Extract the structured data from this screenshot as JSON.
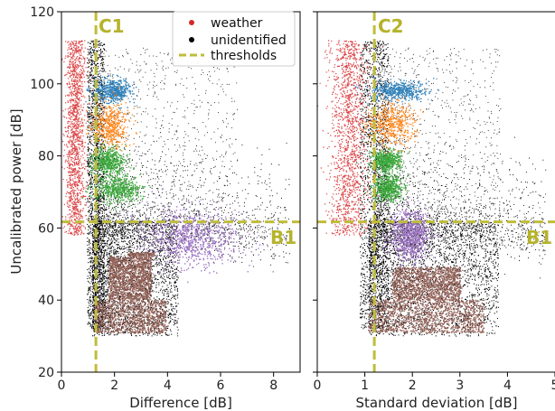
{
  "chart_data": [
    {
      "type": "scatter",
      "panel": "left",
      "xlabel": "Difference [dB]",
      "ylabel": "Uncalibrated power [dB]",
      "xlim": [
        0,
        9
      ],
      "ylim": [
        20,
        120
      ],
      "xticks": [
        0,
        2,
        4,
        6,
        8
      ],
      "yticks": [
        20,
        40,
        60,
        80,
        100,
        120
      ],
      "thresholds": {
        "x": 1.3,
        "y": 61.7,
        "x_label": "C1",
        "y_label": "B1"
      },
      "series": [
        {
          "name": "weather",
          "color": "#d62728",
          "x_range": [
            0.25,
            1.1
          ],
          "y_range": [
            58,
            112
          ]
        },
        {
          "name": "unidentified",
          "color": "#000000",
          "x_range": [
            0.8,
            9.0
          ],
          "y_range": [
            28,
            115
          ]
        }
      ],
      "clusters": [
        {
          "color": "#1f77b4",
          "center": [
            1.9,
            98.0
          ],
          "spread": [
            0.35,
            1.6
          ]
        },
        {
          "color": "#ff7f0e",
          "center": [
            1.85,
            88.5
          ],
          "spread": [
            0.35,
            3.0
          ]
        },
        {
          "color": "#2ca02c",
          "center": [
            1.8,
            78.5
          ],
          "spread": [
            0.3,
            1.8
          ]
        },
        {
          "color": "#2ca02c",
          "center": [
            2.1,
            71.0
          ],
          "spread": [
            0.45,
            1.9
          ]
        },
        {
          "color": "#9467bd",
          "center": [
            4.9,
            57.0
          ],
          "spread": [
            0.9,
            4.0
          ]
        },
        {
          "color": "#8c564b",
          "center": [
            2.6,
            42.0
          ],
          "spread": [
            1.0,
            8.0
          ]
        }
      ]
    },
    {
      "type": "scatter",
      "panel": "right",
      "xlabel": "Standard deviation [dB]",
      "ylabel": "",
      "xlim": [
        0,
        5
      ],
      "ylim": [
        20,
        120
      ],
      "xticks": [
        0,
        1,
        2,
        3,
        4,
        5
      ],
      "yticks": [
        20,
        40,
        60,
        80,
        100,
        120
      ],
      "thresholds": {
        "x": 1.2,
        "y": 61.7,
        "x_label": "C2",
        "y_label": "B1"
      },
      "series": [
        {
          "name": "weather",
          "color": "#d62728",
          "x_range": [
            0.3,
            1.2
          ],
          "y_range": [
            58,
            112
          ]
        },
        {
          "name": "unidentified",
          "color": "#000000",
          "x_range": [
            0.4,
            5.0
          ],
          "y_range": [
            28,
            115
          ]
        }
      ],
      "clusters": [
        {
          "color": "#1f77b4",
          "center": [
            1.7,
            98.0
          ],
          "spread": [
            0.3,
            1.4
          ]
        },
        {
          "color": "#ff7f0e",
          "center": [
            1.55,
            88.5
          ],
          "spread": [
            0.25,
            3.0
          ]
        },
        {
          "color": "#2ca02c",
          "center": [
            1.45,
            78.5
          ],
          "spread": [
            0.15,
            1.5
          ]
        },
        {
          "color": "#2ca02c",
          "center": [
            1.5,
            71.0
          ],
          "spread": [
            0.15,
            1.8
          ]
        },
        {
          "color": "#9467bd",
          "center": [
            1.95,
            58.0
          ],
          "spread": [
            0.2,
            3.5
          ]
        },
        {
          "color": "#8c564b",
          "center": [
            2.3,
            40.0
          ],
          "spread": [
            0.9,
            6.5
          ]
        }
      ]
    }
  ],
  "legend": {
    "items": [
      {
        "label": "weather",
        "color": "#d62728",
        "kind": "dot"
      },
      {
        "label": "unidentified",
        "color": "#000000",
        "kind": "dot"
      },
      {
        "label": "thresholds",
        "color": "#bfbd3a",
        "kind": "dashed-line"
      }
    ]
  },
  "colors": {
    "threshold": "#bfbd3a",
    "threshold_text": "#b5b32a"
  }
}
